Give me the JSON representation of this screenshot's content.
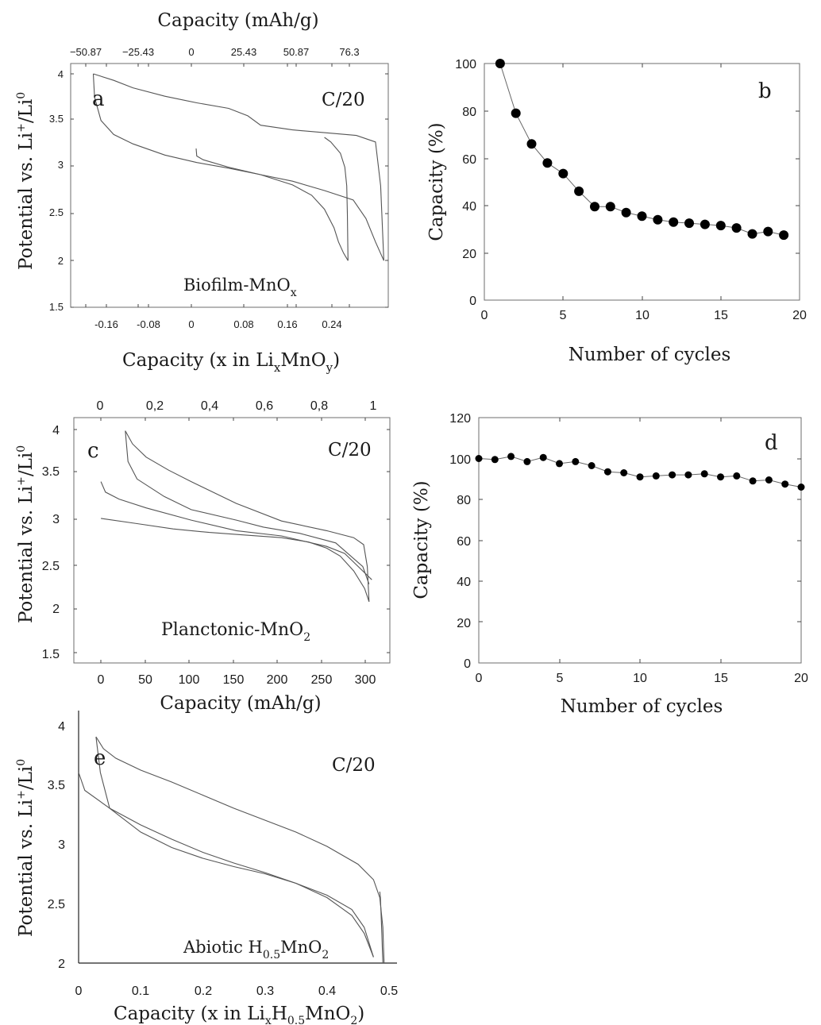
{
  "chart_data": [
    {
      "panel_letter": "a",
      "type": "line",
      "rate_label": "C/20",
      "material": {
        "prefix": "Biofilm-MnO",
        "sub": "x"
      },
      "ylabel": {
        "main": "Potential vs. Li",
        "sup1": "+",
        "mid": "/Li",
        "sup2": "0"
      },
      "xlabel": {
        "prefix": "Capacity (x in Li",
        "sub1": "x",
        "mid": "MnO",
        "sub2": "y",
        "suffix": ")"
      },
      "top_xlabel": "Capacity (mAh/g)",
      "x_ticks": [
        "-0.16",
        "-0.08",
        "0",
        "0.08",
        "0.16",
        "0.24"
      ],
      "top_ticks": [
        "−50.87",
        "−25.43",
        "0",
        "25.43",
        "50.87",
        "76.3"
      ],
      "y_ticks": [
        "1.5",
        "2",
        "2.5",
        "3",
        "3.5",
        "4"
      ],
      "xlim": [
        -0.19,
        0.3
      ],
      "ylim": [
        1.5,
        4
      ],
      "series": [
        {
          "x": [
            0.237,
            0.23,
            0.222,
            0.215,
            0.2,
            0.18,
            0.15,
            0.1,
            0.05,
            0.0,
            -0.05,
            -0.1,
            -0.13,
            -0.15,
            -0.16,
            -0.162
          ],
          "y": [
            2.0,
            2.08,
            2.2,
            2.35,
            2.55,
            2.7,
            2.81,
            2.92,
            2.99,
            3.05,
            3.13,
            3.25,
            3.35,
            3.5,
            3.75,
            4.0
          ]
        },
        {
          "x": [
            -0.162,
            -0.13,
            -0.1,
            -0.05,
            0.0,
            0.05,
            0.08,
            0.1,
            0.15,
            0.2,
            0.25,
            0.28,
            0.288,
            0.293
          ],
          "y": [
            4.0,
            3.93,
            3.85,
            3.76,
            3.69,
            3.63,
            3.55,
            3.45,
            3.4,
            3.37,
            3.34,
            3.27,
            2.8,
            2.0
          ]
        },
        {
          "x": [
            0.293,
            0.28,
            0.265,
            0.245,
            0.2,
            0.15,
            0.1,
            0.05,
            0.01,
            0.0,
            -0.001
          ],
          "y": [
            2.0,
            2.2,
            2.45,
            2.65,
            2.75,
            2.85,
            2.92,
            3.0,
            3.08,
            3.12,
            3.2
          ]
        },
        {
          "x": [
            0.237,
            0.236,
            0.235,
            0.232,
            0.225,
            0.21,
            0.2
          ],
          "y": [
            2.0,
            2.5,
            2.8,
            3.0,
            3.15,
            3.27,
            3.32
          ]
        }
      ]
    },
    {
      "panel_letter": "b",
      "type": "scatter",
      "xlabel": "Number of cycles",
      "ylabel": "Capacity (%)",
      "x_ticks": [
        "0",
        "5",
        "10",
        "15",
        "20"
      ],
      "y_ticks": [
        "0",
        "20",
        "40",
        "60",
        "80",
        "100"
      ],
      "xlim": [
        0,
        20
      ],
      "ylim": [
        0,
        100
      ],
      "x": [
        1,
        2,
        3,
        4,
        5,
        6,
        7,
        8,
        9,
        10,
        11,
        12,
        13,
        14,
        15,
        16,
        17,
        18,
        19
      ],
      "y": [
        100,
        79,
        66,
        58,
        53.5,
        46,
        39.5,
        39.5,
        37,
        35.5,
        34,
        33,
        32.5,
        32,
        31.5,
        30.5,
        28,
        29,
        27.5
      ]
    },
    {
      "panel_letter": "c",
      "type": "line",
      "rate_label": "C/20",
      "material": {
        "prefix": "Planctonic-MnO",
        "sub": "2"
      },
      "ylabel": {
        "main": "Potential vs. Li",
        "sup1": "+",
        "mid": "/Li",
        "sup2": "0"
      },
      "xlabel": "Capacity (mAh/g)",
      "x_ticks": [
        "0",
        "50",
        "100",
        "150",
        "200",
        "250",
        "300"
      ],
      "top_ticks": [
        "0",
        "0,2",
        "0,4",
        "0,6",
        "0,8",
        "1"
      ],
      "y_ticks": [
        "1.5",
        "2",
        "2.5",
        "3",
        "3.5",
        "4"
      ],
      "xlim": [
        -30,
        320
      ],
      "ylim": [
        1.3,
        4.1
      ],
      "series": [
        {
          "x": [
            0,
            5,
            20,
            50,
            100,
            150,
            200,
            250,
            270,
            285,
            300
          ],
          "y": [
            3.37,
            3.25,
            3.17,
            3.07,
            2.93,
            2.81,
            2.75,
            2.63,
            2.55,
            2.4,
            2.25
          ]
        },
        {
          "x": [
            0,
            40,
            80,
            120,
            160,
            200,
            230,
            250,
            265,
            280,
            292,
            297
          ],
          "y": [
            2.95,
            2.89,
            2.83,
            2.79,
            2.76,
            2.73,
            2.68,
            2.61,
            2.52,
            2.35,
            2.15,
            2.0
          ]
        },
        {
          "x": [
            297,
            295,
            291,
            280,
            250,
            200,
            150,
            100,
            75,
            50,
            35,
            27
          ],
          "y": [
            2.0,
            2.4,
            2.65,
            2.73,
            2.81,
            2.92,
            3.12,
            3.37,
            3.5,
            3.65,
            3.8,
            3.95
          ]
        },
        {
          "x": [
            27,
            30,
            40,
            70,
            100,
            150,
            180,
            220,
            260,
            290,
            297
          ],
          "y": [
            3.95,
            3.6,
            3.4,
            3.2,
            3.05,
            2.93,
            2.85,
            2.78,
            2.67,
            2.4,
            2.2
          ]
        }
      ]
    },
    {
      "panel_letter": "d",
      "type": "scatter",
      "xlabel": "Number of cycles",
      "ylabel": "Capacity (%)",
      "x_ticks": [
        "0",
        "5",
        "10",
        "15",
        "20"
      ],
      "y_ticks": [
        "0",
        "20",
        "40",
        "60",
        "80",
        "100",
        "120"
      ],
      "xlim": [
        0,
        20
      ],
      "ylim": [
        0,
        120
      ],
      "x": [
        0,
        1,
        2,
        3,
        4,
        5,
        6,
        7,
        8,
        9,
        10,
        11,
        12,
        13,
        14,
        15,
        16,
        17,
        18,
        19,
        20
      ],
      "y": [
        100,
        99.5,
        101,
        98.5,
        100.5,
        97.5,
        98.5,
        96.5,
        93.5,
        93,
        91,
        91.5,
        92,
        92,
        92.5,
        91,
        91.5,
        89,
        89.5,
        87.5,
        86
      ]
    },
    {
      "panel_letter": "e",
      "type": "line",
      "rate_label": "C/20",
      "material": {
        "prefix": "Abiotic H",
        "sub1": "0.5",
        "mid": "MnO",
        "sub2": "2"
      },
      "ylabel": {
        "main": "Potential vs. Li",
        "sup1": "+",
        "mid": "/Li",
        "sup2": "0"
      },
      "xlabel": {
        "prefix": "Capacity (x in Li",
        "sub1": "x",
        "mid": "H",
        "sub2": "0.5",
        "mid2": "MnO",
        "sub3": "2",
        "suffix": ")"
      },
      "x_ticks": [
        "0",
        "0.1",
        "0.2",
        "0.3",
        "0.4",
        "0.5"
      ],
      "y_ticks": [
        "2",
        "2.5",
        "3",
        "3.5",
        "4"
      ],
      "xlim": [
        0,
        0.5
      ],
      "ylim": [
        2,
        4
      ],
      "series": [
        {
          "x": [
            0,
            0.01,
            0.05,
            0.1,
            0.15,
            0.2,
            0.25,
            0.3,
            0.35,
            0.4,
            0.44,
            0.46,
            0.475
          ],
          "y": [
            3.6,
            3.45,
            3.3,
            3.16,
            3.04,
            2.93,
            2.84,
            2.76,
            2.67,
            2.57,
            2.45,
            2.3,
            2.05
          ]
        },
        {
          "x": [
            0.475,
            0.46,
            0.44,
            0.4,
            0.35,
            0.3,
            0.25,
            0.2,
            0.15,
            0.1,
            0.05,
            0.035,
            0.028
          ],
          "y": [
            2.05,
            2.25,
            2.4,
            2.55,
            2.67,
            2.75,
            2.81,
            2.88,
            2.97,
            3.1,
            3.3,
            3.6,
            3.9
          ]
        },
        {
          "x": [
            0.028,
            0.04,
            0.06,
            0.1,
            0.15,
            0.2,
            0.25,
            0.3,
            0.35,
            0.4,
            0.45,
            0.475,
            0.485,
            0.49,
            0.492
          ],
          "y": [
            3.9,
            3.8,
            3.72,
            3.62,
            3.52,
            3.41,
            3.3,
            3.2,
            3.1,
            2.98,
            2.83,
            2.7,
            2.55,
            2.3,
            2.0
          ]
        },
        {
          "x": [
            0.49,
            0.488,
            0.486,
            0.485
          ],
          "y": [
            2.0,
            2.3,
            2.55,
            2.6
          ]
        }
      ]
    }
  ]
}
